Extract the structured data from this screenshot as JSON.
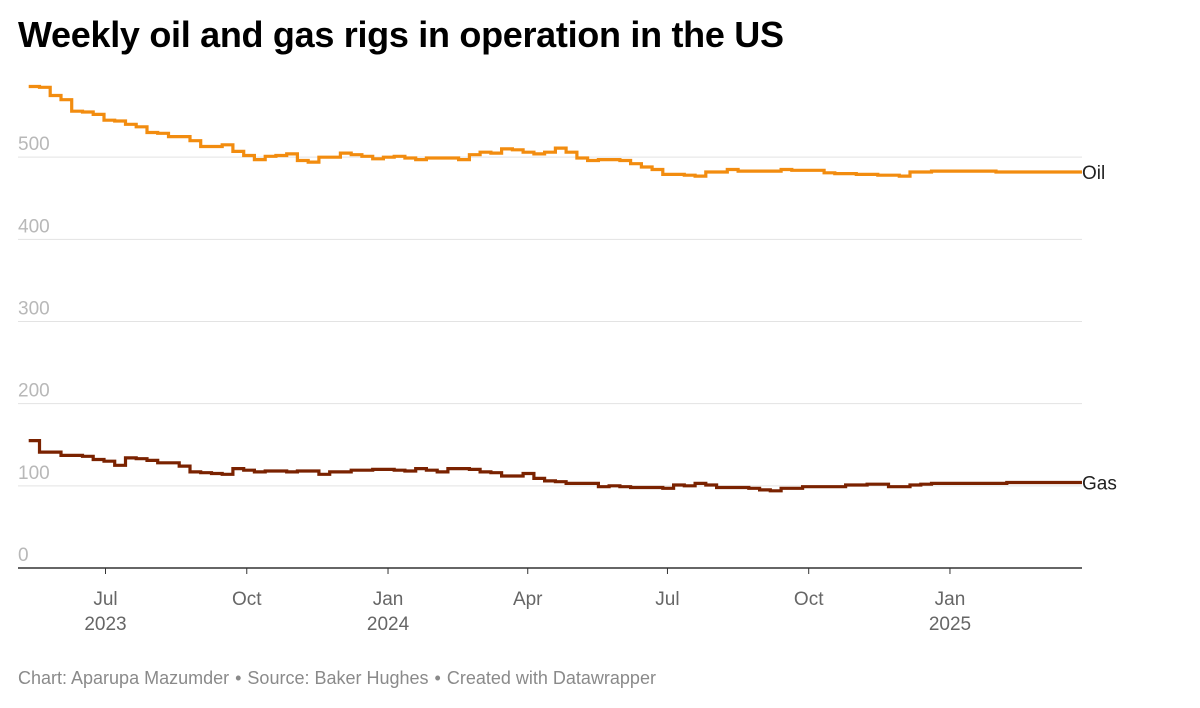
{
  "title": "Weekly oil and gas rigs in operation in the US",
  "footer": {
    "chart_credit": "Chart: Aparupa Mazumder",
    "source": "Source: Baker Hughes",
    "tool": "Created with Datawrapper",
    "separator": "•"
  },
  "colors": {
    "oil": "#f28c0f",
    "gas": "#7a2200",
    "grid": "#e3e3e3",
    "axis": "#333333"
  },
  "chart_data": {
    "type": "line",
    "title": "Weekly oil and gas rigs in operation in the US",
    "xlabel": "",
    "ylabel": "",
    "ylim": [
      0,
      600
    ],
    "xlim": [
      "2023-05-05",
      "2025-03-28"
    ],
    "y_ticks": [
      0,
      100,
      200,
      300,
      400,
      500
    ],
    "y_tick_labels": [
      "0",
      "100",
      "200",
      "300",
      "400",
      "500"
    ],
    "x_ticks": [
      {
        "date": "2023-07-01",
        "label": "Jul",
        "year": "2023"
      },
      {
        "date": "2023-10-01",
        "label": "Oct",
        "year": ""
      },
      {
        "date": "2024-01-01",
        "label": "Jan",
        "year": "2024"
      },
      {
        "date": "2024-04-01",
        "label": "Apr",
        "year": ""
      },
      {
        "date": "2024-07-01",
        "label": "Jul",
        "year": ""
      },
      {
        "date": "2024-10-01",
        "label": "Oct",
        "year": ""
      },
      {
        "date": "2025-01-01",
        "label": "Jan",
        "year": "2025"
      }
    ],
    "series": [
      {
        "name": "Oil",
        "color": "#f28c0f",
        "points": [
          [
            "2023-05-12",
            586
          ],
          [
            "2023-05-19",
            585
          ],
          [
            "2023-05-26",
            575
          ],
          [
            "2023-06-02",
            570
          ],
          [
            "2023-06-09",
            556
          ],
          [
            "2023-06-16",
            555
          ],
          [
            "2023-06-23",
            552
          ],
          [
            "2023-06-30",
            545
          ],
          [
            "2023-07-07",
            544
          ],
          [
            "2023-07-14",
            540
          ],
          [
            "2023-07-21",
            537
          ],
          [
            "2023-07-28",
            530
          ],
          [
            "2023-08-04",
            529
          ],
          [
            "2023-08-11",
            525
          ],
          [
            "2023-08-18",
            525
          ],
          [
            "2023-08-25",
            520
          ],
          [
            "2023-09-01",
            513
          ],
          [
            "2023-09-08",
            513
          ],
          [
            "2023-09-15",
            515
          ],
          [
            "2023-09-22",
            507
          ],
          [
            "2023-09-29",
            502
          ],
          [
            "2023-10-06",
            497
          ],
          [
            "2023-10-13",
            501
          ],
          [
            "2023-10-20",
            502
          ],
          [
            "2023-10-27",
            504
          ],
          [
            "2023-11-03",
            496
          ],
          [
            "2023-11-10",
            494
          ],
          [
            "2023-11-17",
            500
          ],
          [
            "2023-11-24",
            500
          ],
          [
            "2023-12-01",
            505
          ],
          [
            "2023-12-08",
            503
          ],
          [
            "2023-12-15",
            501
          ],
          [
            "2023-12-22",
            498
          ],
          [
            "2023-12-29",
            500
          ],
          [
            "2024-01-05",
            501
          ],
          [
            "2024-01-12",
            499
          ],
          [
            "2024-01-19",
            497
          ],
          [
            "2024-01-26",
            499
          ],
          [
            "2024-02-02",
            499
          ],
          [
            "2024-02-09",
            499
          ],
          [
            "2024-02-16",
            497
          ],
          [
            "2024-02-23",
            503
          ],
          [
            "2024-03-01",
            506
          ],
          [
            "2024-03-08",
            505
          ],
          [
            "2024-03-15",
            510
          ],
          [
            "2024-03-22",
            509
          ],
          [
            "2024-03-29",
            506
          ],
          [
            "2024-04-05",
            504
          ],
          [
            "2024-04-12",
            506
          ],
          [
            "2024-04-19",
            511
          ],
          [
            "2024-04-26",
            506
          ],
          [
            "2024-05-03",
            499
          ],
          [
            "2024-05-10",
            496
          ],
          [
            "2024-05-17",
            497
          ],
          [
            "2024-05-24",
            497
          ],
          [
            "2024-05-31",
            496
          ],
          [
            "2024-06-07",
            492
          ],
          [
            "2024-06-14",
            488
          ],
          [
            "2024-06-21",
            485
          ],
          [
            "2024-06-28",
            479
          ],
          [
            "2024-07-05",
            479
          ],
          [
            "2024-07-12",
            478
          ],
          [
            "2024-07-19",
            477
          ],
          [
            "2024-07-26",
            482
          ],
          [
            "2024-08-02",
            482
          ],
          [
            "2024-08-09",
            485
          ],
          [
            "2024-08-16",
            483
          ],
          [
            "2024-08-23",
            483
          ],
          [
            "2024-08-30",
            483
          ],
          [
            "2024-09-06",
            483
          ],
          [
            "2024-09-13",
            485
          ],
          [
            "2024-09-20",
            484
          ],
          [
            "2024-09-27",
            484
          ],
          [
            "2024-10-04",
            484
          ],
          [
            "2024-10-11",
            481
          ],
          [
            "2024-10-18",
            480
          ],
          [
            "2024-10-25",
            480
          ],
          [
            "2024-11-01",
            479
          ],
          [
            "2024-11-08",
            479
          ],
          [
            "2024-11-15",
            478
          ],
          [
            "2024-11-22",
            478
          ],
          [
            "2024-11-29",
            477
          ],
          [
            "2024-12-06",
            482
          ],
          [
            "2024-12-13",
            482
          ],
          [
            "2024-12-20",
            483
          ],
          [
            "2024-12-27",
            483
          ],
          [
            "2025-01-03",
            483
          ],
          [
            "2025-01-10",
            483
          ],
          [
            "2025-01-17",
            483
          ],
          [
            "2025-01-24",
            483
          ],
          [
            "2025-01-31",
            482
          ],
          [
            "2025-02-07",
            482
          ],
          [
            "2025-02-14",
            482
          ],
          [
            "2025-02-21",
            482
          ],
          [
            "2025-02-28",
            482
          ],
          [
            "2025-03-07",
            482
          ],
          [
            "2025-03-14",
            482
          ],
          [
            "2025-03-21",
            482
          ]
        ]
      },
      {
        "name": "Gas",
        "color": "#7a2200",
        "points": [
          [
            "2023-05-12",
            155
          ],
          [
            "2023-05-19",
            141
          ],
          [
            "2023-05-26",
            141
          ],
          [
            "2023-06-02",
            137
          ],
          [
            "2023-06-09",
            137
          ],
          [
            "2023-06-16",
            136
          ],
          [
            "2023-06-23",
            132
          ],
          [
            "2023-06-30",
            130
          ],
          [
            "2023-07-07",
            125
          ],
          [
            "2023-07-14",
            134
          ],
          [
            "2023-07-21",
            133
          ],
          [
            "2023-07-28",
            131
          ],
          [
            "2023-08-04",
            128
          ],
          [
            "2023-08-11",
            128
          ],
          [
            "2023-08-18",
            124
          ],
          [
            "2023-08-25",
            117
          ],
          [
            "2023-09-01",
            116
          ],
          [
            "2023-09-08",
            115
          ],
          [
            "2023-09-15",
            114
          ],
          [
            "2023-09-22",
            121
          ],
          [
            "2023-09-29",
            119
          ],
          [
            "2023-10-06",
            117
          ],
          [
            "2023-10-13",
            118
          ],
          [
            "2023-10-20",
            118
          ],
          [
            "2023-10-27",
            117
          ],
          [
            "2023-11-03",
            118
          ],
          [
            "2023-11-10",
            118
          ],
          [
            "2023-11-17",
            114
          ],
          [
            "2023-11-24",
            117
          ],
          [
            "2023-12-01",
            117
          ],
          [
            "2023-12-08",
            119
          ],
          [
            "2023-12-15",
            119
          ],
          [
            "2023-12-22",
            120
          ],
          [
            "2023-12-29",
            120
          ],
          [
            "2024-01-05",
            119
          ],
          [
            "2024-01-12",
            118
          ],
          [
            "2024-01-19",
            121
          ],
          [
            "2024-01-26",
            119
          ],
          [
            "2024-02-02",
            117
          ],
          [
            "2024-02-09",
            121
          ],
          [
            "2024-02-16",
            121
          ],
          [
            "2024-02-23",
            120
          ],
          [
            "2024-03-01",
            117
          ],
          [
            "2024-03-08",
            116
          ],
          [
            "2024-03-15",
            112
          ],
          [
            "2024-03-22",
            112
          ],
          [
            "2024-03-29",
            115
          ],
          [
            "2024-04-05",
            109
          ],
          [
            "2024-04-12",
            106
          ],
          [
            "2024-04-19",
            105
          ],
          [
            "2024-04-26",
            103
          ],
          [
            "2024-05-03",
            103
          ],
          [
            "2024-05-10",
            103
          ],
          [
            "2024-05-17",
            99
          ],
          [
            "2024-05-24",
            100
          ],
          [
            "2024-05-31",
            99
          ],
          [
            "2024-06-07",
            98
          ],
          [
            "2024-06-14",
            98
          ],
          [
            "2024-06-21",
            98
          ],
          [
            "2024-06-28",
            97
          ],
          [
            "2024-07-05",
            101
          ],
          [
            "2024-07-12",
            100
          ],
          [
            "2024-07-19",
            103
          ],
          [
            "2024-07-26",
            101
          ],
          [
            "2024-08-02",
            98
          ],
          [
            "2024-08-09",
            98
          ],
          [
            "2024-08-16",
            98
          ],
          [
            "2024-08-23",
            97
          ],
          [
            "2024-08-30",
            95
          ],
          [
            "2024-09-06",
            94
          ],
          [
            "2024-09-13",
            97
          ],
          [
            "2024-09-20",
            97
          ],
          [
            "2024-09-27",
            99
          ],
          [
            "2024-10-04",
            99
          ],
          [
            "2024-10-11",
            99
          ],
          [
            "2024-10-18",
            99
          ],
          [
            "2024-10-25",
            101
          ],
          [
            "2024-11-01",
            101
          ],
          [
            "2024-11-08",
            102
          ],
          [
            "2024-11-15",
            102
          ],
          [
            "2024-11-22",
            99
          ],
          [
            "2024-11-29",
            99
          ],
          [
            "2024-12-06",
            101
          ],
          [
            "2024-12-13",
            102
          ],
          [
            "2024-12-20",
            103
          ],
          [
            "2024-12-27",
            103
          ],
          [
            "2025-01-03",
            103
          ],
          [
            "2025-01-10",
            103
          ],
          [
            "2025-01-17",
            103
          ],
          [
            "2025-01-24",
            103
          ],
          [
            "2025-01-31",
            103
          ],
          [
            "2025-02-07",
            104
          ],
          [
            "2025-02-14",
            104
          ],
          [
            "2025-02-21",
            104
          ],
          [
            "2025-02-28",
            104
          ],
          [
            "2025-03-07",
            104
          ],
          [
            "2025-03-14",
            104
          ],
          [
            "2025-03-21",
            104
          ]
        ]
      }
    ]
  }
}
